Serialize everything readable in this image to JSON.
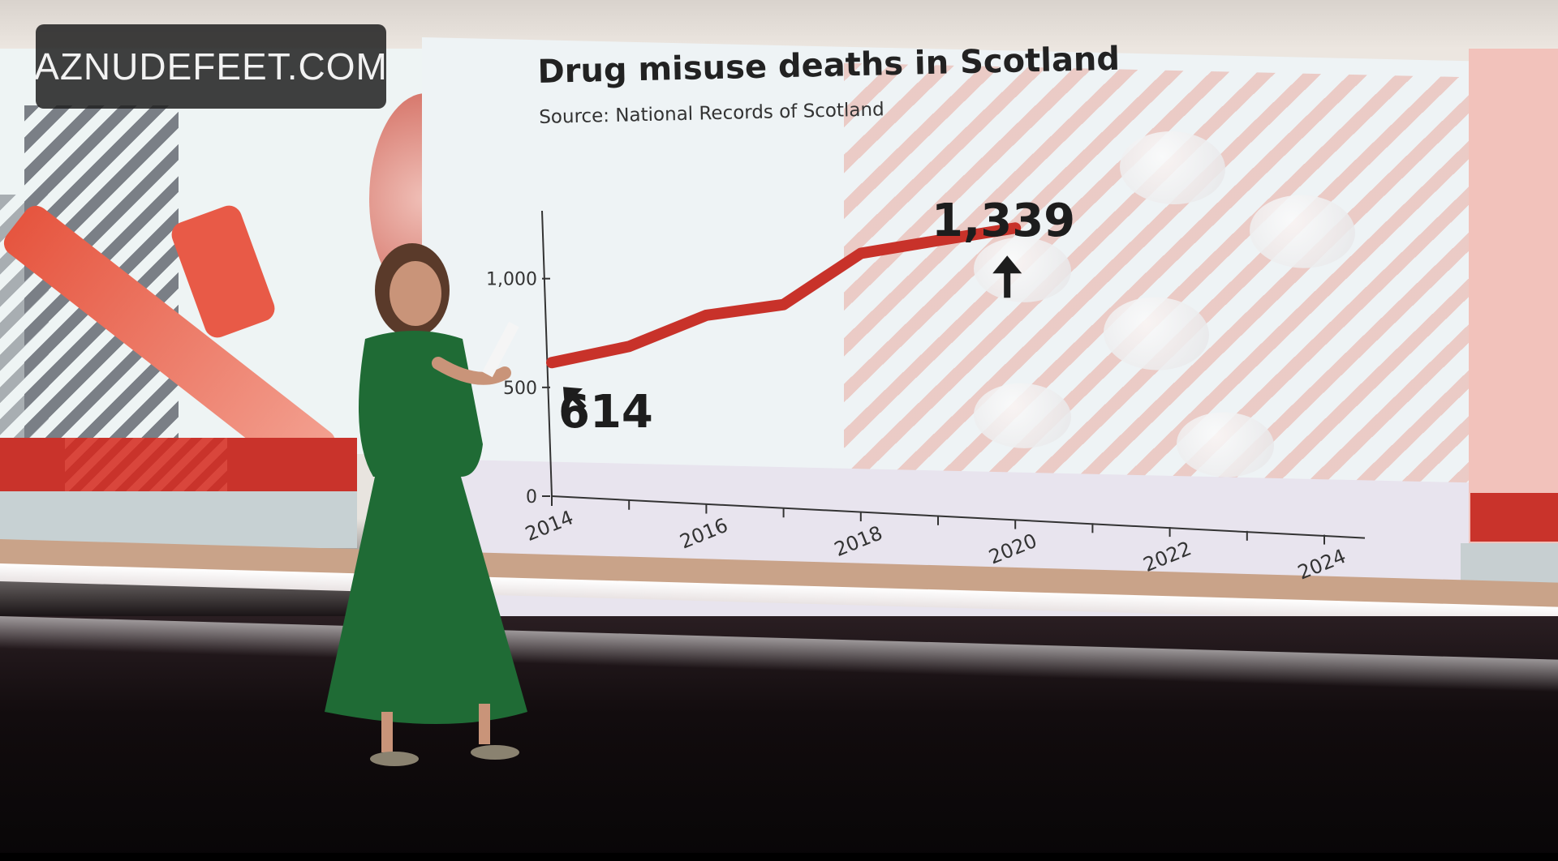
{
  "watermark": {
    "text": "AZNUDEFEET.COM"
  },
  "chart_data": {
    "type": "line",
    "title": "Drug misuse deaths in Scotland",
    "subtitle": "Source: National Records of Scotland",
    "x": [
      2014,
      2015,
      2016,
      2017,
      2018,
      2019,
      2020
    ],
    "values": [
      614,
      706,
      867,
      934,
      1187,
      1264,
      1339
    ],
    "xticks": [
      "2014",
      "2016",
      "2018",
      "2020",
      "2022",
      "2024"
    ],
    "yticks": [
      "0",
      "500",
      "1,000"
    ],
    "xlim": [
      2014,
      2024
    ],
    "ylim": [
      0,
      1200
    ],
    "grid": false,
    "line_color": "#c8322a",
    "annotations": [
      {
        "label": "614",
        "x": 2014
      },
      {
        "label": "1,339",
        "x": 2020
      }
    ]
  },
  "colors": {
    "accent": "#c8322a",
    "text": "#1d1d1d"
  }
}
